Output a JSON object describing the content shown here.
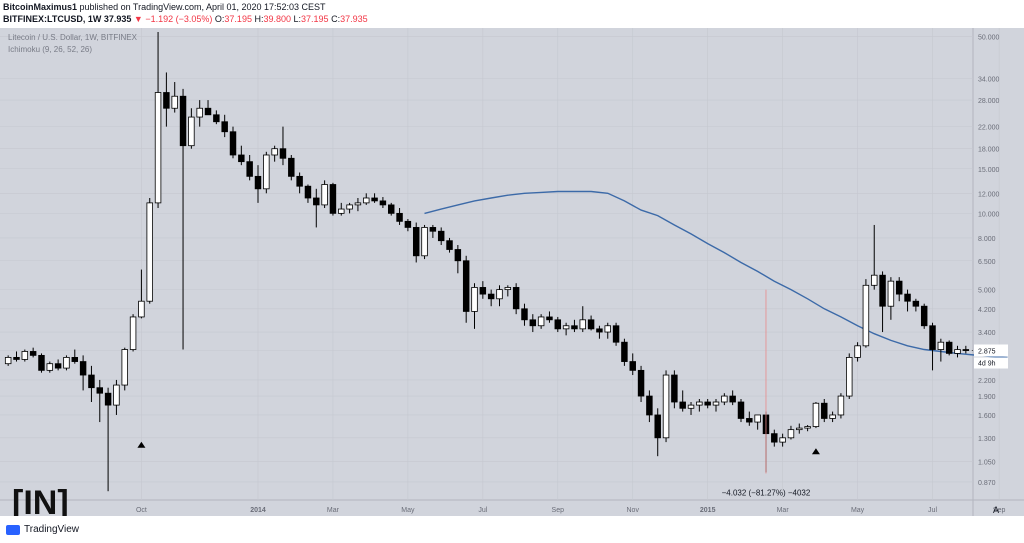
{
  "header": {
    "author": "BitcoinMaximus1",
    "published": "published on TradingView.com, April 01, 2020 17:52:03 CEST",
    "symbol": "BITFINEX:LTCUSD, 1W",
    "last": "37.935",
    "change_arrow": "▼",
    "change": "−1.192 (−3.05%)",
    "o_label": "O:",
    "o_value": "37.195",
    "h_label": "H:",
    "h_value": "39.800",
    "l_label": "L:",
    "l_value": "37.195",
    "c_label": "C:",
    "c_value": "37.935"
  },
  "legend": {
    "line1": "Litecoin / U.S. Dollar, 1W, BITFINEX",
    "line2": "Ichimoku (9, 26, 52, 26)"
  },
  "colors": {
    "background": "#d1d4dc",
    "bull_body": "#ffffff",
    "bear_body": "#000000",
    "wick": "#000000",
    "ichimoku_line": "#3c6aa8",
    "measure_line": "#e88a8a",
    "price_tag_bg": "#ffffff"
  },
  "chart_data": {
    "type": "candlestick",
    "y_scale": "log",
    "y_ticks": [
      "50.000",
      "34.000",
      "28.000",
      "22.000",
      "18.000",
      "15.000",
      "12.000",
      "10.000",
      "8.000",
      "6.500",
      "5.000",
      "4.200",
      "3.400",
      "2.875",
      "2.200",
      "1.900",
      "1.600",
      "1.300",
      "1.050",
      "0.870"
    ],
    "y_tick_values": [
      50.0,
      34.0,
      28.0,
      22.0,
      18.0,
      15.0,
      12.0,
      10.0,
      8.0,
      6.5,
      5.0,
      4.2,
      3.4,
      2.875,
      2.2,
      1.9,
      1.6,
      1.3,
      1.05,
      0.87
    ],
    "ylim": [
      0.78,
      52
    ],
    "x_ticks": [
      "Oct",
      "2014",
      "Mar",
      "May",
      "Jul",
      "Sep",
      "Nov",
      "2015",
      "Mar",
      "May",
      "Jul",
      "Sep"
    ],
    "last_price_label": "2.875",
    "countdown_label": "4d 9h",
    "candles": [
      [
        2.55,
        2.75,
        2.5,
        2.7
      ],
      [
        2.7,
        2.85,
        2.6,
        2.65
      ],
      [
        2.65,
        2.9,
        2.6,
        2.85
      ],
      [
        2.85,
        2.95,
        2.7,
        2.75
      ],
      [
        2.75,
        2.8,
        2.35,
        2.4
      ],
      [
        2.4,
        2.6,
        2.35,
        2.55
      ],
      [
        2.55,
        2.65,
        2.4,
        2.45
      ],
      [
        2.45,
        2.75,
        2.4,
        2.7
      ],
      [
        2.7,
        2.9,
        2.55,
        2.6
      ],
      [
        2.6,
        2.75,
        2.0,
        2.3
      ],
      [
        2.3,
        2.5,
        1.8,
        2.05
      ],
      [
        2.05,
        2.2,
        1.5,
        1.95
      ],
      [
        1.95,
        2.05,
        0.8,
        1.75
      ],
      [
        1.75,
        2.2,
        1.6,
        2.1
      ],
      [
        2.1,
        2.95,
        2.0,
        2.9
      ],
      [
        2.9,
        4.0,
        2.85,
        3.9
      ],
      [
        3.9,
        6.0,
        3.85,
        4.5
      ],
      [
        4.5,
        11.5,
        4.4,
        11.0
      ],
      [
        11.0,
        52.0,
        10.5,
        30.0
      ],
      [
        30.0,
        36.0,
        22.0,
        26.0
      ],
      [
        26.0,
        33.0,
        25.0,
        29.0
      ],
      [
        29.0,
        31.0,
        2.9,
        18.5
      ],
      [
        18.5,
        26.0,
        18.0,
        24.0
      ],
      [
        24.0,
        28.0,
        22.0,
        26.0
      ],
      [
        26.0,
        28.0,
        25.0,
        24.5
      ],
      [
        24.5,
        25.5,
        22.5,
        23.0
      ],
      [
        23.0,
        24.5,
        20.0,
        21.0
      ],
      [
        21.0,
        22.0,
        16.5,
        17.0
      ],
      [
        17.0,
        18.5,
        15.5,
        16.0
      ],
      [
        16.0,
        17.0,
        13.5,
        14.0
      ],
      [
        14.0,
        15.5,
        11.0,
        12.5
      ],
      [
        12.5,
        17.5,
        12.0,
        17.0
      ],
      [
        17.0,
        18.5,
        16.0,
        18.0
      ],
      [
        18.0,
        22.0,
        15.5,
        16.5
      ],
      [
        16.5,
        17.0,
        13.5,
        14.0
      ],
      [
        14.0,
        14.5,
        12.0,
        12.8
      ],
      [
        12.8,
        13.0,
        11.0,
        11.5
      ],
      [
        11.5,
        12.5,
        8.8,
        10.8
      ],
      [
        10.8,
        13.5,
        10.5,
        13.0
      ],
      [
        13.0,
        13.2,
        9.8,
        10.0
      ],
      [
        10.0,
        11.0,
        9.8,
        10.4
      ],
      [
        10.4,
        11.0,
        10.0,
        10.8
      ],
      [
        10.8,
        11.5,
        10.2,
        11.0
      ],
      [
        11.0,
        12.0,
        10.8,
        11.5
      ],
      [
        11.5,
        12.0,
        11.0,
        11.2
      ],
      [
        11.2,
        11.6,
        10.5,
        10.8
      ],
      [
        10.8,
        11.0,
        9.8,
        10.0
      ],
      [
        10.0,
        10.5,
        9.0,
        9.3
      ],
      [
        9.3,
        9.5,
        8.5,
        8.8
      ],
      [
        8.8,
        9.2,
        6.4,
        6.8
      ],
      [
        6.8,
        9.0,
        6.6,
        8.8
      ],
      [
        8.8,
        9.0,
        8.0,
        8.5
      ],
      [
        8.5,
        8.8,
        7.5,
        7.8
      ],
      [
        7.8,
        8.0,
        7.0,
        7.2
      ],
      [
        7.2,
        7.5,
        5.8,
        6.5
      ],
      [
        6.5,
        6.8,
        3.7,
        4.1
      ],
      [
        4.1,
        5.3,
        3.5,
        5.1
      ],
      [
        5.1,
        5.4,
        4.6,
        4.8
      ],
      [
        4.8,
        5.0,
        4.3,
        4.6
      ],
      [
        4.6,
        5.2,
        4.3,
        5.0
      ],
      [
        5.0,
        5.2,
        4.7,
        5.1
      ],
      [
        5.1,
        5.3,
        4.0,
        4.2
      ],
      [
        4.2,
        4.4,
        3.6,
        3.8
      ],
      [
        3.8,
        4.0,
        3.4,
        3.6
      ],
      [
        3.6,
        4.0,
        3.5,
        3.9
      ],
      [
        3.9,
        4.1,
        3.7,
        3.8
      ],
      [
        3.8,
        3.9,
        3.4,
        3.5
      ],
      [
        3.5,
        3.7,
        3.3,
        3.6
      ],
      [
        3.6,
        3.8,
        3.4,
        3.5
      ],
      [
        3.5,
        4.3,
        3.4,
        3.8
      ],
      [
        3.8,
        3.95,
        3.45,
        3.5
      ],
      [
        3.5,
        3.6,
        3.2,
        3.4
      ],
      [
        3.4,
        3.7,
        3.2,
        3.6
      ],
      [
        3.6,
        3.7,
        3.0,
        3.1
      ],
      [
        3.1,
        3.2,
        2.5,
        2.6
      ],
      [
        2.6,
        2.8,
        2.3,
        2.4
      ],
      [
        2.4,
        2.5,
        1.8,
        1.9
      ],
      [
        1.9,
        2.0,
        1.5,
        1.6
      ],
      [
        1.6,
        1.7,
        1.1,
        1.3
      ],
      [
        1.3,
        2.4,
        1.25,
        2.3
      ],
      [
        2.3,
        2.4,
        1.7,
        1.8
      ],
      [
        1.8,
        2.0,
        1.65,
        1.7
      ],
      [
        1.7,
        1.8,
        1.6,
        1.75
      ],
      [
        1.75,
        1.85,
        1.65,
        1.8
      ],
      [
        1.8,
        1.85,
        1.7,
        1.75
      ],
      [
        1.75,
        1.85,
        1.65,
        1.8
      ],
      [
        1.8,
        1.95,
        1.75,
        1.9
      ],
      [
        1.9,
        2.0,
        1.75,
        1.8
      ],
      [
        1.8,
        1.85,
        1.5,
        1.55
      ],
      [
        1.55,
        1.65,
        1.45,
        1.5
      ],
      [
        1.5,
        1.6,
        1.4,
        1.6
      ],
      [
        1.6,
        1.65,
        0.95,
        1.35
      ],
      [
        1.35,
        1.4,
        1.2,
        1.25
      ],
      [
        1.25,
        1.35,
        1.2,
        1.3
      ],
      [
        1.3,
        1.45,
        1.28,
        1.4
      ],
      [
        1.4,
        1.48,
        1.35,
        1.42
      ],
      [
        1.42,
        1.46,
        1.38,
        1.44
      ],
      [
        1.44,
        1.8,
        1.42,
        1.78
      ],
      [
        1.78,
        1.85,
        1.5,
        1.55
      ],
      [
        1.55,
        1.65,
        1.5,
        1.6
      ],
      [
        1.6,
        1.95,
        1.55,
        1.9
      ],
      [
        1.9,
        2.8,
        1.85,
        2.7
      ],
      [
        2.7,
        3.1,
        2.6,
        3.0
      ],
      [
        3.0,
        5.5,
        2.95,
        5.2
      ],
      [
        5.2,
        9.0,
        5.0,
        5.7
      ],
      [
        5.7,
        5.9,
        3.4,
        4.3
      ],
      [
        4.3,
        5.6,
        3.8,
        5.4
      ],
      [
        5.4,
        5.6,
        4.5,
        4.8
      ],
      [
        4.8,
        5.0,
        4.1,
        4.5
      ],
      [
        4.5,
        4.6,
        4.1,
        4.3
      ],
      [
        4.3,
        4.4,
        3.5,
        3.6
      ],
      [
        3.6,
        3.7,
        2.4,
        2.9
      ],
      [
        2.9,
        3.2,
        2.6,
        3.1
      ],
      [
        3.1,
        3.15,
        2.75,
        2.8
      ],
      [
        2.8,
        3.0,
        2.7,
        2.9
      ],
      [
        2.9,
        3.0,
        2.8,
        2.875
      ]
    ],
    "ichimoku_line": [
      [
        50,
        10.0
      ],
      [
        52,
        10.4
      ],
      [
        54,
        10.8
      ],
      [
        56,
        11.2
      ],
      [
        58,
        11.5
      ],
      [
        60,
        11.8
      ],
      [
        62,
        12.0
      ],
      [
        64,
        12.1
      ],
      [
        66,
        12.2
      ],
      [
        68,
        12.2
      ],
      [
        70,
        12.2
      ],
      [
        72,
        12.0
      ],
      [
        74,
        11.2
      ],
      [
        76,
        10.3
      ],
      [
        78,
        9.8
      ],
      [
        80,
        9.0
      ],
      [
        82,
        8.3
      ],
      [
        84,
        7.6
      ],
      [
        86,
        7.0
      ],
      [
        88,
        6.4
      ],
      [
        90,
        5.9
      ],
      [
        92,
        5.4
      ],
      [
        94,
        5.0
      ],
      [
        96,
        4.6
      ],
      [
        98,
        4.2
      ],
      [
        100,
        3.9
      ],
      [
        102,
        3.6
      ],
      [
        104,
        3.35
      ],
      [
        106,
        3.15
      ],
      [
        108,
        3.0
      ],
      [
        110,
        2.9
      ],
      [
        112,
        2.85
      ],
      [
        114,
        2.8
      ],
      [
        116,
        2.76
      ],
      [
        118,
        2.72
      ],
      [
        120,
        2.7
      ]
    ],
    "measure_label": "−4.032 (−81.27%) −4032",
    "measure_top": 5.0,
    "measure_bottom": 0.94,
    "marker_up_1": [
      1.22,
      16
    ],
    "marker_up_2": [
      1.15,
      97
    ]
  },
  "footer": {
    "brand": "TradingView",
    "axis_corner": "A"
  },
  "watermark": "[IN]"
}
